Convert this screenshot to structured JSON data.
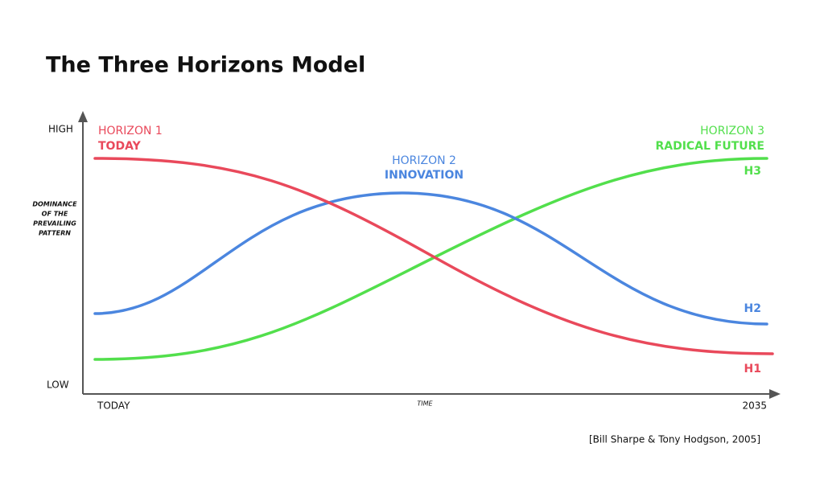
{
  "title": "The Three Horizons Model",
  "axes": {
    "y_high": "HIGH",
    "y_low": "LOW",
    "y_label_lines": [
      "DOMINANCE",
      "OF THE",
      "PREVAILING",
      "PATTERN"
    ],
    "x_start": "TODAY",
    "x_label": "TIME",
    "x_end": "2035"
  },
  "horizons": [
    {
      "name": "HORIZON 1",
      "subtitle": "TODAY",
      "tag": "H1",
      "color": "#e9495b"
    },
    {
      "name": "HORIZON 2",
      "subtitle": "INNOVATION",
      "tag": "H2",
      "color": "#4b86df"
    },
    {
      "name": "HORIZON 3",
      "subtitle": "RADICAL FUTURE",
      "tag": "H3",
      "color": "#52df4c"
    }
  ],
  "source": "[Bill Sharpe & Tony Hodgson, 2005]"
}
